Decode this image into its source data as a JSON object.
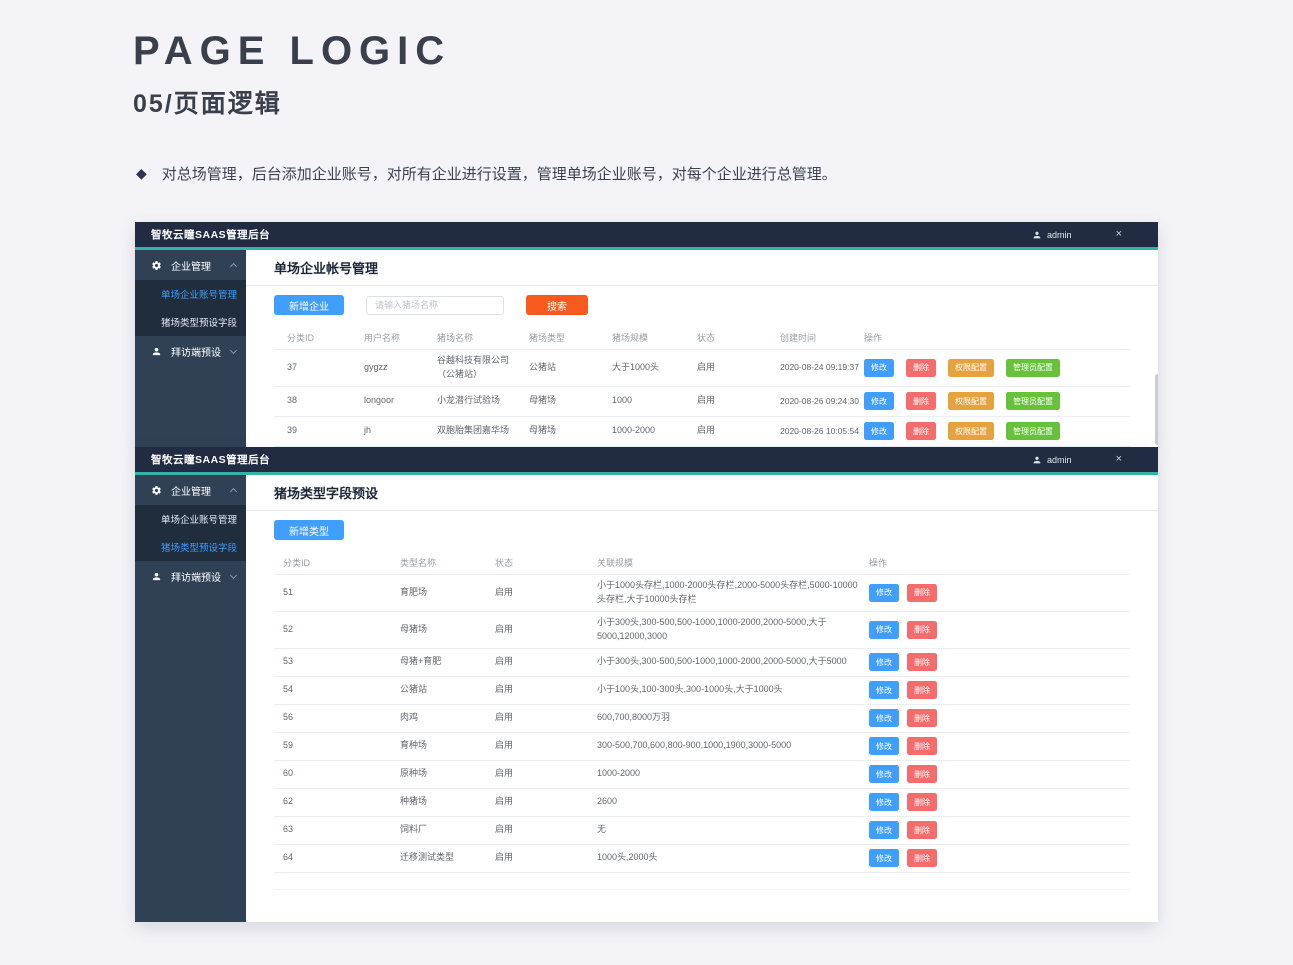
{
  "page": {
    "title": "PAGE LOGIC",
    "subtitle": "05/页面逻辑",
    "bullet_marker": "◆",
    "bullet": "对总场管理，后台添加企业账号，对所有企业进行设置，管理单场企业账号，对每个企业进行总管理。"
  },
  "colors": {
    "accent_teal": "#34b3a9",
    "topbar_bg": "#212c42",
    "sidebar_bg": "#304156",
    "submenu_bg": "#1f2d3d",
    "active_link": "#409eff",
    "primary_btn": "#409eff",
    "danger_btn": "#f56c6c",
    "warning_btn": "#e6a23c",
    "success_btn": "#67c23a",
    "search_btn": "#f65b1d"
  },
  "screen1": {
    "topbar": {
      "title": "智牧云瞳SAAS管理后台",
      "user": "admin",
      "close": "×"
    },
    "sidebar": {
      "group1": "企业管理",
      "sub1": "单场企业账号管理",
      "sub2": "猪场类型预设字段",
      "group2": "拜访端预设"
    },
    "main": {
      "title": "单场企业帐号管理",
      "add_button": "新增企业",
      "search_placeholder": "请输入猪场名称",
      "search_button": "搜索",
      "table": {
        "headers": [
          "分类ID",
          "用户名称",
          "猪场名称",
          "猪场类型",
          "猪场规模",
          "状态",
          "创建时间",
          "操作"
        ],
        "actions": [
          "修改",
          "删除",
          "权限配置",
          "管理员配置"
        ],
        "rows": [
          {
            "id": "37",
            "user": "gygzz",
            "farm": "谷越科技有限公司（公猪站）",
            "type": "公猪站",
            "scale": "大于1000头",
            "status": "启用",
            "created": "2020-08-24 09:19:37"
          },
          {
            "id": "38",
            "user": "longoor",
            "farm": "小龙潜行试验场",
            "type": "母猪场",
            "scale": "1000",
            "status": "启用",
            "created": "2020-08-26 09:24:30"
          },
          {
            "id": "39",
            "user": "jh",
            "farm": "双胞胎集团嘉华场",
            "type": "母猪场",
            "scale": "1000-2000",
            "status": "启用",
            "created": "2020-08-26 10:05:54"
          }
        ]
      }
    }
  },
  "screen2": {
    "topbar": {
      "title": "智牧云瞳SAAS管理后台",
      "user": "admin",
      "close": "×"
    },
    "sidebar": {
      "group1": "企业管理",
      "sub1": "单场企业账号管理",
      "sub2": "猪场类型预设字段",
      "group2": "拜访端预设"
    },
    "main": {
      "title": "猪场类型字段预设",
      "add_button": "新增类型",
      "table": {
        "headers": [
          "分类ID",
          "类型名称",
          "状态",
          "关联规模",
          "操作"
        ],
        "actions": [
          "修改",
          "删除"
        ],
        "rows": [
          {
            "id": "51",
            "name": "育肥场",
            "status": "启用",
            "scale": "小于1000头存栏,1000-2000头存栏,2000-5000头存栏,5000-10000头存栏,大于10000头存栏"
          },
          {
            "id": "52",
            "name": "母猪场",
            "status": "启用",
            "scale": "小于300头,300-500,500-1000,1000-2000,2000-5000,大于5000,12000,3000"
          },
          {
            "id": "53",
            "name": "母猪+育肥",
            "status": "启用",
            "scale": "小于300头,300-500,500-1000,1000-2000,2000-5000,大于5000"
          },
          {
            "id": "54",
            "name": "公猪站",
            "status": "启用",
            "scale": "小于100头,100-300头,300-1000头,大于1000头"
          },
          {
            "id": "56",
            "name": "肉鸡",
            "status": "启用",
            "scale": "600,700,8000万羽"
          },
          {
            "id": "59",
            "name": "育种场",
            "status": "启用",
            "scale": "300-500,700,600,800-900,1000,1900,3000-5000"
          },
          {
            "id": "60",
            "name": "原种场",
            "status": "启用",
            "scale": "1000-2000"
          },
          {
            "id": "62",
            "name": "种猪场",
            "status": "启用",
            "scale": "2600"
          },
          {
            "id": "63",
            "name": "饲料厂",
            "status": "启用",
            "scale": "无"
          },
          {
            "id": "64",
            "name": "迁移测试类型",
            "status": "启用",
            "scale": "1000头,2000头"
          }
        ]
      }
    }
  }
}
